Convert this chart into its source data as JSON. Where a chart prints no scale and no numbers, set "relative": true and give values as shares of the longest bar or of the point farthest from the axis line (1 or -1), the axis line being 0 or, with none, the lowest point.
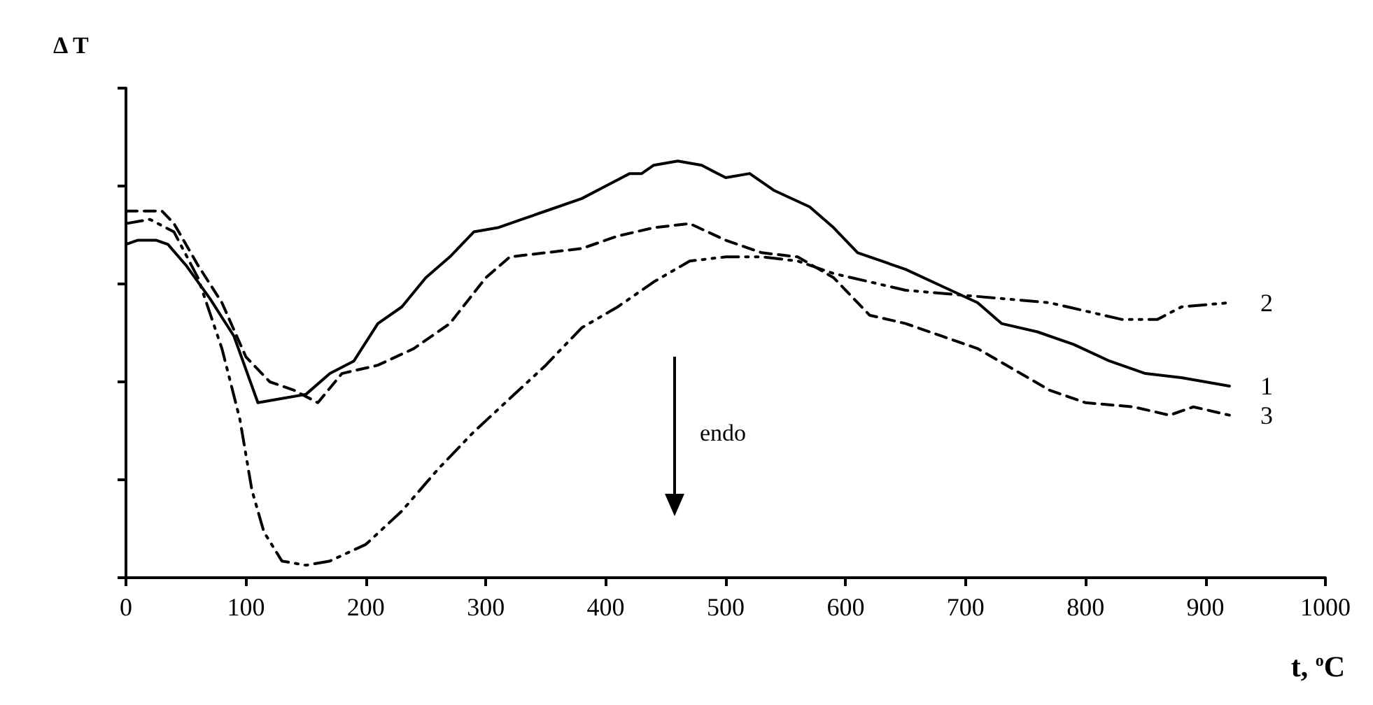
{
  "chart_data": {
    "type": "line",
    "relative": true,
    "xlabel": "t, $^{o}$C",
    "ylabel": "Δ T",
    "annotations": [
      "endo"
    ],
    "xlim": [
      0,
      1000
    ],
    "xticks": [
      0,
      100,
      200,
      300,
      400,
      500,
      600,
      700,
      800,
      900,
      1000
    ],
    "grid": false,
    "legend": false,
    "marker": "none",
    "series": [
      {
        "name": "1",
        "color": "#000000",
        "line_style": "solid",
        "x": [
          0,
          10,
          25,
          35,
          50,
          70,
          90,
          110,
          130,
          150,
          170,
          190,
          210,
          230,
          250,
          270,
          290,
          310,
          330,
          350,
          380,
          400,
          420,
          430,
          440,
          460,
          480,
          500,
          520,
          540,
          570,
          590,
          610,
          630,
          650,
          680,
          710,
          730,
          760,
          790,
          820,
          850,
          880,
          920
        ],
        "values": [
          0.8,
          0.81,
          0.81,
          0.8,
          0.75,
          0.67,
          0.58,
          0.42,
          0.43,
          0.44,
          0.49,
          0.52,
          0.61,
          0.65,
          0.72,
          0.77,
          0.83,
          0.84,
          0.86,
          0.88,
          0.91,
          0.94,
          0.97,
          0.97,
          0.99,
          1,
          0.99,
          0.96,
          0.97,
          0.93,
          0.89,
          0.84,
          0.78,
          0.76,
          0.74,
          0.7,
          0.66,
          0.61,
          0.59,
          0.56,
          0.52,
          0.49,
          0.48,
          0.46
        ]
      },
      {
        "name": "2",
        "color": "#000000",
        "line_style": "dotted",
        "x": [
          0,
          20,
          40,
          60,
          80,
          95,
          105,
          115,
          130,
          150,
          170,
          200,
          230,
          260,
          290,
          320,
          350,
          380,
          410,
          440,
          470,
          500,
          530,
          560,
          590,
          620,
          650,
          690,
          730,
          770,
          800,
          830,
          860,
          880,
          920
        ],
        "values": [
          0.85,
          0.86,
          0.83,
          0.72,
          0.55,
          0.38,
          0.21,
          0.11,
          0.04,
          0.03,
          0.04,
          0.08,
          0.16,
          0.26,
          0.35,
          0.43,
          0.51,
          0.6,
          0.65,
          0.71,
          0.76,
          0.77,
          0.77,
          0.76,
          0.73,
          0.71,
          0.69,
          0.68,
          0.67,
          0.66,
          0.64,
          0.62,
          0.62,
          0.65,
          0.66
        ]
      },
      {
        "name": "3",
        "color": "#000000",
        "line_style": "dashed",
        "x": [
          0,
          30,
          40,
          60,
          80,
          100,
          120,
          140,
          160,
          180,
          210,
          240,
          270,
          300,
          320,
          350,
          380,
          410,
          440,
          470,
          500,
          530,
          560,
          590,
          620,
          650,
          680,
          710,
          740,
          770,
          800,
          840,
          870,
          890,
          920
        ],
        "values": [
          0.88,
          0.88,
          0.85,
          0.75,
          0.66,
          0.53,
          0.47,
          0.45,
          0.42,
          0.49,
          0.51,
          0.55,
          0.61,
          0.72,
          0.77,
          0.78,
          0.79,
          0.82,
          0.84,
          0.85,
          0.81,
          0.78,
          0.77,
          0.72,
          0.63,
          0.61,
          0.58,
          0.55,
          0.5,
          0.45,
          0.42,
          0.41,
          0.39,
          0.41,
          0.39
        ]
      }
    ]
  }
}
